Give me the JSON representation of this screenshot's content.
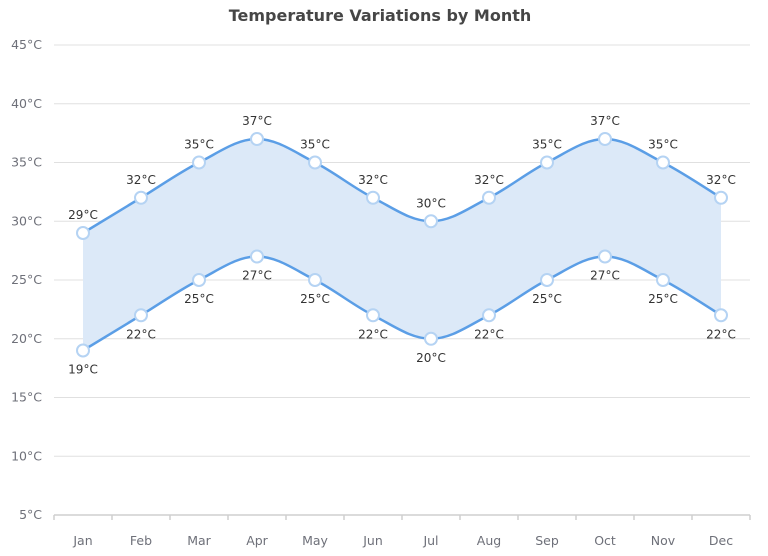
{
  "chart_data": {
    "type": "area",
    "subtype": "range-area",
    "title": "Temperature Variations by Month",
    "categories": [
      "Jan",
      "Feb",
      "Mar",
      "Apr",
      "May",
      "Jun",
      "Jul",
      "Aug",
      "Sep",
      "Oct",
      "Nov",
      "Dec"
    ],
    "series": [
      {
        "role": "high",
        "values": [
          29,
          32,
          35,
          37,
          35,
          32,
          30,
          32,
          35,
          37,
          35,
          32
        ]
      },
      {
        "role": "low",
        "values": [
          19,
          22,
          25,
          27,
          25,
          22,
          20,
          22,
          25,
          27,
          25,
          22
        ]
      }
    ],
    "unit_suffix": "°C",
    "ylim": [
      5,
      45
    ],
    "yticks": [
      5,
      10,
      15,
      20,
      25,
      30,
      35,
      40,
      45
    ],
    "ytick_labels": [
      "5°C",
      "10°C",
      "15°C",
      "20°C",
      "25°C",
      "30°C",
      "35°C",
      "40°C",
      "45°C"
    ],
    "grid": true,
    "smooth": true,
    "colors": {
      "line": "#5b9ee6",
      "fill": "#dce9f8",
      "marker_fill": "#ffffff",
      "marker_stroke": "#b5d3f3",
      "grid": "#e0e0e0",
      "axis": "#cfcfcf"
    }
  }
}
